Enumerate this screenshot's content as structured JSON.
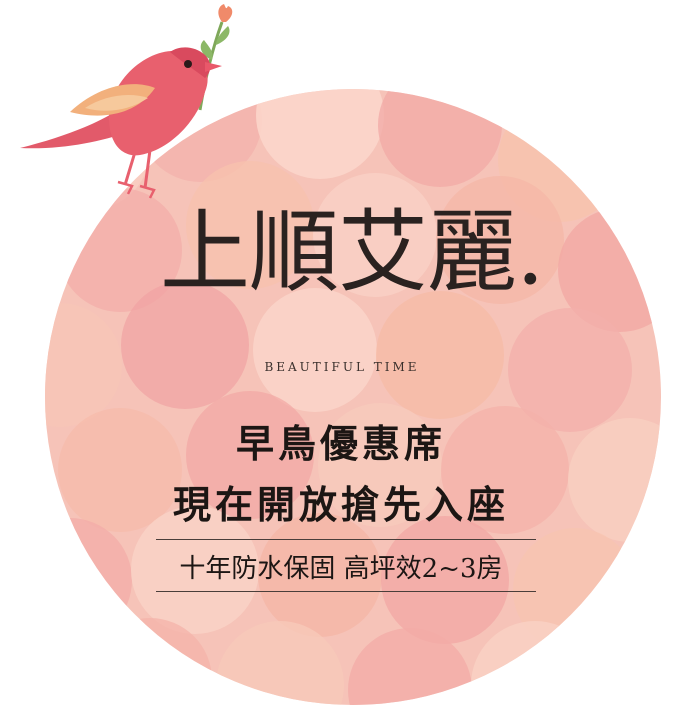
{
  "brand": {
    "title": "上順艾麗.",
    "subtitle": "BEAUTIFUL TIME"
  },
  "promo": {
    "line1": "早鳥優惠席",
    "line2": "現在開放搶先入座",
    "features": "十年防水保固 高坪效2~3房"
  },
  "palette": {
    "disc_base": "#f6c3b8",
    "bubble_pink": "#f2a8a6",
    "bubble_peach": "#f7c0a4",
    "bubble_light": "#fbd9cf",
    "bird_body": "#e8606e",
    "bird_wing": "#f2b07c",
    "text_dark": "#1c1614"
  },
  "icons": [
    "bird-illustration",
    "flower-twig-icon"
  ]
}
